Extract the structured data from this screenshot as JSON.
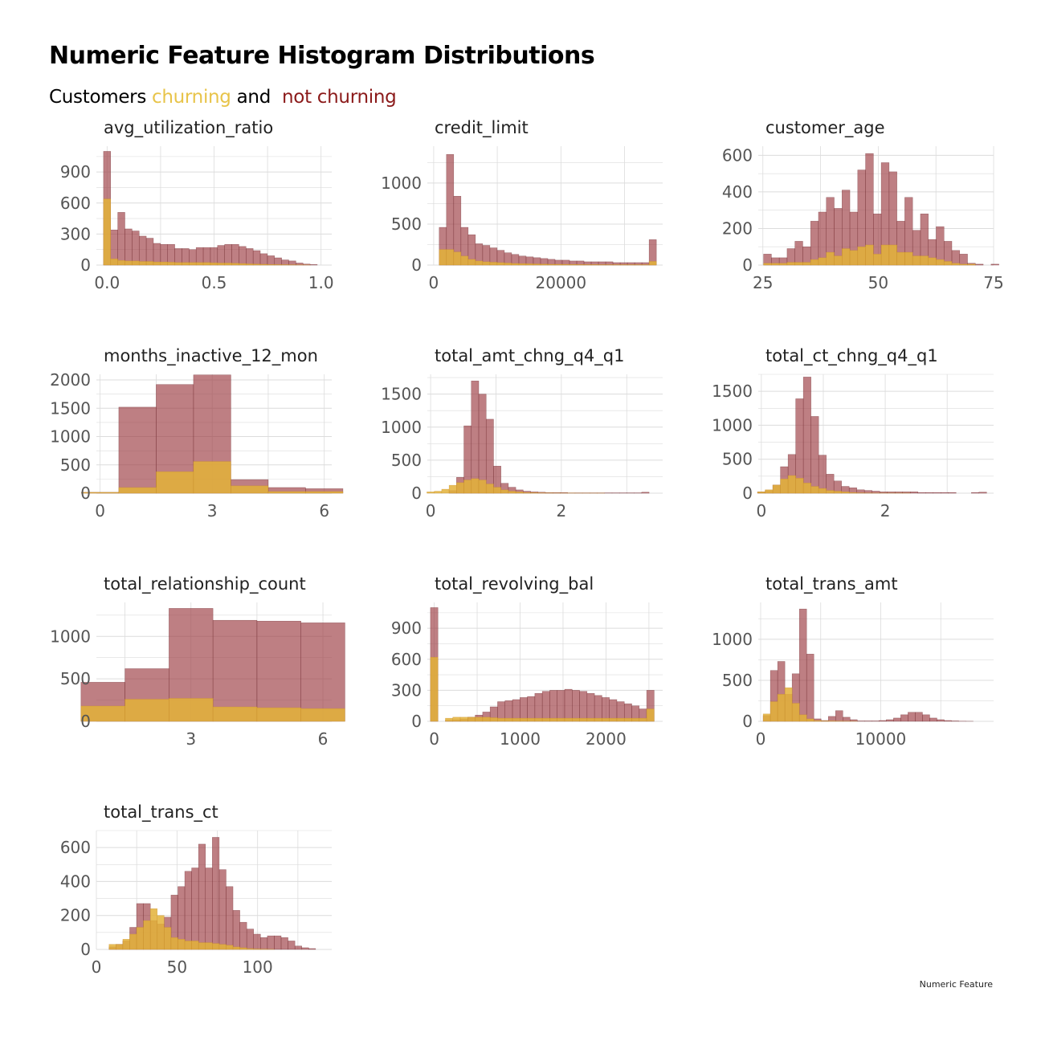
{
  "title": "Numeric Feature Histogram Distributions",
  "subtitle": {
    "prefix": "Customers ",
    "churning_label": "churning",
    "middle": " and  ",
    "not_churning_label": "not churning"
  },
  "caption": "Numeric Feature",
  "colors": {
    "churning": "#e3b13a",
    "churning_text": "#e8c44a",
    "not_churning": "#9b3b40",
    "not_churning_text": "#8b1a1a",
    "grid": "#dcdcdc",
    "axis_text": "#555555"
  },
  "chart_data": [
    {
      "type": "bar",
      "title": "avg_utilization_ratio",
      "x_breaks": [
        "0.0",
        "0.5",
        "1.0"
      ],
      "x_break_values": [
        0,
        0.5,
        1.0
      ],
      "xlim": [
        -0.05,
        1.05
      ],
      "ylim": [
        0,
        1150
      ],
      "y_breaks": [
        0,
        300,
        600,
        900
      ],
      "bin_start": 0.0,
      "bin_width": 0.0333,
      "series": [
        {
          "name": "not churning",
          "values": [
            1100,
            340,
            510,
            350,
            330,
            280,
            260,
            210,
            200,
            200,
            160,
            160,
            150,
            170,
            170,
            170,
            190,
            200,
            200,
            180,
            160,
            140,
            110,
            90,
            70,
            50,
            40,
            20,
            10,
            5
          ]
        },
        {
          "name": "churning",
          "values": [
            640,
            60,
            45,
            40,
            40,
            35,
            35,
            30,
            30,
            28,
            25,
            25,
            25,
            25,
            25,
            22,
            20,
            20,
            18,
            15,
            12,
            10,
            8,
            6,
            5,
            4,
            3,
            2,
            1,
            0
          ]
        }
      ]
    },
    {
      "type": "bar",
      "title": "credit_limit",
      "x_breaks": [
        "0",
        "20000"
      ],
      "x_break_values": [
        0,
        20000
      ],
      "xlim": [
        -1000,
        36000
      ],
      "ylim": [
        0,
        1450
      ],
      "y_breaks": [
        0,
        500,
        1000
      ],
      "bin_start": 1438,
      "bin_width": 1138,
      "series": [
        {
          "name": "not churning",
          "values": [
            460,
            1350,
            840,
            460,
            370,
            260,
            240,
            210,
            180,
            150,
            130,
            110,
            100,
            90,
            80,
            70,
            60,
            60,
            50,
            50,
            40,
            40,
            40,
            40,
            30,
            30,
            30,
            30,
            30,
            310
          ]
        },
        {
          "name": "churning",
          "values": [
            190,
            190,
            160,
            110,
            70,
            50,
            40,
            35,
            30,
            25,
            20,
            18,
            16,
            14,
            12,
            10,
            10,
            9,
            8,
            7,
            6,
            6,
            5,
            5,
            5,
            5,
            5,
            5,
            5,
            45
          ]
        }
      ]
    },
    {
      "type": "bar",
      "title": "customer_age",
      "x_breaks": [
        "25",
        "50",
        "75"
      ],
      "x_break_values": [
        25,
        50,
        75
      ],
      "xlim": [
        24,
        75
      ],
      "ylim": [
        0,
        650
      ],
      "y_breaks": [
        0,
        200,
        400,
        600
      ],
      "bin_start": 26,
      "bin_width": 1.7,
      "series": [
        {
          "name": "not churning",
          "values": [
            60,
            40,
            40,
            90,
            130,
            100,
            240,
            290,
            370,
            310,
            410,
            290,
            520,
            610,
            280,
            560,
            510,
            240,
            370,
            190,
            280,
            140,
            210,
            130,
            80,
            60,
            10,
            5,
            0,
            5
          ]
        },
        {
          "name": "churning",
          "values": [
            10,
            10,
            10,
            15,
            15,
            15,
            30,
            40,
            70,
            50,
            90,
            80,
            100,
            110,
            60,
            110,
            110,
            70,
            70,
            50,
            50,
            40,
            30,
            20,
            10,
            5,
            5,
            0,
            0,
            0
          ]
        }
      ]
    },
    {
      "type": "bar",
      "title": "months_inactive_12_mon",
      "x_breaks": [
        "0",
        "3",
        "6"
      ],
      "x_break_values": [
        0,
        3,
        6
      ],
      "xlim": [
        -0.1,
        6.2
      ],
      "ylim": [
        0,
        2100
      ],
      "y_breaks": [
        0,
        500,
        1000,
        1500,
        2000
      ],
      "bin_start": 0,
      "bin_width": 1,
      "series": [
        {
          "name": "not churning",
          "values": [
            15,
            1520,
            1920,
            2090,
            240,
            100,
            80
          ]
        },
        {
          "name": "churning",
          "values": [
            15,
            100,
            380,
            560,
            130,
            30,
            30
          ]
        }
      ]
    },
    {
      "type": "bar",
      "title": "total_amt_chng_q4_q1",
      "x_breaks": [
        "0",
        "2"
      ],
      "x_break_values": [
        0,
        2
      ],
      "xlim": [
        -0.05,
        3.55
      ],
      "ylim": [
        0,
        1800
      ],
      "y_breaks": [
        0,
        500,
        1000,
        1500
      ],
      "bin_start": 0.0,
      "bin_width": 0.1133,
      "series": [
        {
          "name": "not churning",
          "values": [
            0,
            0,
            0,
            40,
            240,
            1020,
            1700,
            1500,
            1120,
            410,
            150,
            90,
            50,
            30,
            20,
            15,
            10,
            10,
            10,
            5,
            5,
            5,
            5,
            5,
            5,
            5,
            5,
            5,
            5,
            15
          ]
        },
        {
          "name": "churning",
          "values": [
            20,
            30,
            60,
            120,
            160,
            200,
            220,
            200,
            140,
            90,
            50,
            30,
            20,
            10,
            8,
            5,
            4,
            3,
            2,
            2,
            1,
            1,
            1,
            1,
            0,
            0,
            0,
            0,
            0,
            0
          ]
        }
      ]
    },
    {
      "type": "bar",
      "title": "total_ct_chng_q4_q1",
      "x_breaks": [
        "0",
        "2"
      ],
      "x_break_values": [
        0,
        2
      ],
      "xlim": [
        -0.05,
        3.75
      ],
      "ylim": [
        0,
        1750
      ],
      "y_breaks": [
        0,
        500,
        1000,
        1500
      ],
      "bin_start": 0.0,
      "bin_width": 0.1233,
      "series": [
        {
          "name": "not churning",
          "values": [
            20,
            40,
            120,
            390,
            570,
            1390,
            1710,
            1130,
            560,
            280,
            180,
            100,
            80,
            50,
            40,
            30,
            20,
            20,
            20,
            20,
            20,
            10,
            10,
            10,
            10,
            10,
            0,
            0,
            10,
            15
          ]
        },
        {
          "name": "churning",
          "values": [
            20,
            50,
            120,
            210,
            260,
            220,
            150,
            100,
            70,
            40,
            30,
            20,
            10,
            5,
            3,
            2,
            1,
            1,
            1,
            1,
            0,
            0,
            0,
            0,
            0,
            0,
            0,
            0,
            0,
            0
          ]
        }
      ]
    },
    {
      "type": "bar",
      "title": "total_relationship_count",
      "x_breaks": [
        "3",
        "6"
      ],
      "x_break_values": [
        3,
        6
      ],
      "xlim": [
        0.85,
        6.2
      ],
      "ylim": [
        0,
        1400
      ],
      "y_breaks": [
        0,
        500,
        1000
      ],
      "bin_start": 1,
      "bin_width": 1,
      "series": [
        {
          "name": "not churning",
          "values": [
            460,
            620,
            1330,
            1190,
            1180,
            1160
          ]
        },
        {
          "name": "churning",
          "values": [
            180,
            260,
            270,
            170,
            160,
            150
          ]
        }
      ]
    },
    {
      "type": "bar",
      "title": "total_revolving_bal",
      "x_breaks": [
        "0",
        "1000",
        "2000"
      ],
      "x_break_values": [
        0,
        1000,
        2000
      ],
      "xlim": [
        -80,
        2660
      ],
      "ylim": [
        0,
        1150
      ],
      "y_breaks": [
        0,
        300,
        600,
        900
      ],
      "bin_start": 0,
      "bin_width": 86.8,
      "series": [
        {
          "name": "not churning",
          "values": [
            1100,
            0,
            10,
            15,
            20,
            40,
            60,
            90,
            140,
            190,
            200,
            210,
            230,
            240,
            270,
            290,
            300,
            300,
            310,
            300,
            290,
            270,
            250,
            230,
            210,
            190,
            170,
            150,
            120,
            300
          ]
        },
        {
          "name": "churning",
          "values": [
            620,
            0,
            30,
            40,
            40,
            40,
            40,
            40,
            35,
            30,
            30,
            30,
            30,
            30,
            30,
            30,
            30,
            30,
            30,
            30,
            30,
            30,
            30,
            30,
            30,
            30,
            30,
            30,
            30,
            120
          ]
        }
      ]
    },
    {
      "type": "bar",
      "title": "total_trans_amt",
      "x_breaks": [
        "0",
        "10000"
      ],
      "x_break_values": [
        0,
        10000
      ],
      "xlim": [
        -200,
        19400
      ],
      "ylim": [
        0,
        1450
      ],
      "y_breaks": [
        0,
        500,
        1000
      ],
      "bin_start": 510,
      "bin_width": 603,
      "series": [
        {
          "name": "not churning",
          "values": [
            70,
            620,
            730,
            330,
            580,
            1370,
            820,
            30,
            10,
            60,
            130,
            50,
            20,
            5,
            5,
            5,
            10,
            20,
            40,
            80,
            110,
            110,
            80,
            40,
            20,
            10,
            5,
            2,
            1,
            0
          ]
        },
        {
          "name": "churning",
          "values": [
            90,
            240,
            330,
            410,
            220,
            80,
            30,
            10,
            5,
            5,
            3,
            2,
            1,
            0,
            0,
            0,
            0,
            0,
            0,
            0,
            0,
            0,
            0,
            0,
            0,
            0,
            0,
            0,
            0,
            0
          ]
        }
      ]
    },
    {
      "type": "bar",
      "title": "total_trans_ct",
      "x_breaks": [
        "0",
        "50",
        "100"
      ],
      "x_break_values": [
        0,
        50,
        100
      ],
      "xlim": [
        0,
        146
      ],
      "ylim": [
        0,
        700
      ],
      "y_breaks": [
        0,
        200,
        400,
        600
      ],
      "bin_start": 10,
      "bin_width": 4.27,
      "series": [
        {
          "name": "not churning",
          "values": [
            15,
            30,
            50,
            130,
            270,
            270,
            170,
            150,
            190,
            320,
            370,
            460,
            480,
            620,
            480,
            660,
            470,
            370,
            230,
            160,
            120,
            90,
            70,
            80,
            80,
            70,
            50,
            20,
            10,
            5
          ]
        },
        {
          "name": "churning",
          "values": [
            30,
            30,
            60,
            90,
            130,
            170,
            240,
            200,
            130,
            70,
            60,
            50,
            50,
            40,
            40,
            35,
            30,
            25,
            15,
            10,
            5,
            3,
            2,
            1,
            0,
            0,
            0,
            0,
            0,
            0
          ]
        }
      ]
    }
  ]
}
